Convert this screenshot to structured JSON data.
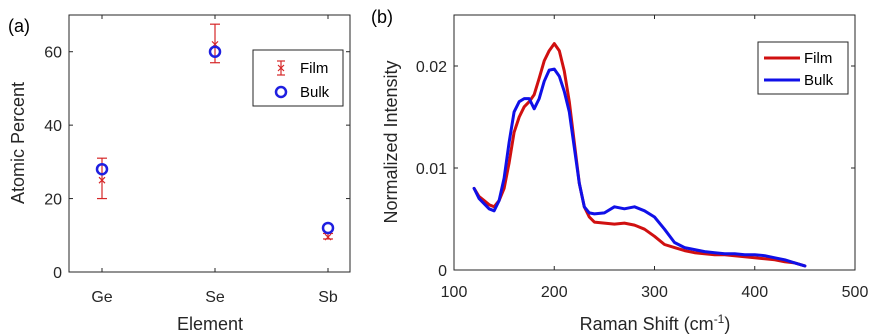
{
  "chart_data": [
    {
      "panel_label": "(a)",
      "type": "scatter",
      "xlabel": "Element",
      "ylabel": "Atomic Percent",
      "categories": [
        "Ge",
        "Se",
        "Sb"
      ],
      "ylim": [
        0,
        70
      ],
      "yticks": [
        0,
        20,
        40,
        60
      ],
      "grid": false,
      "legend_position": "top-right",
      "series": [
        {
          "name": "Film",
          "color": "#d62728",
          "marker": "x",
          "values": [
            25,
            62,
            9.5
          ],
          "error_low": [
            20,
            57,
            9
          ],
          "error_high": [
            31,
            67.5,
            10.5
          ]
        },
        {
          "name": "Bulk",
          "color": "#1f1fe0",
          "marker": "o",
          "values": [
            28,
            60,
            12
          ]
        }
      ]
    },
    {
      "panel_label": "(b)",
      "type": "line",
      "xlabel": "Raman Shift (cm",
      "xlabel_sup": "-1",
      "xlabel_close": ")",
      "ylabel": "Normalized Intensity",
      "xlim": [
        100,
        500
      ],
      "xticks": [
        100,
        200,
        300,
        400,
        500
      ],
      "ylim": [
        0,
        0.025
      ],
      "yticks": [
        0,
        0.01,
        0.02
      ],
      "ytick_labels": [
        "0",
        "0.01",
        "0.02"
      ],
      "grid": false,
      "legend_position": "top-right",
      "series": [
        {
          "name": "Film",
          "color": "#d01010",
          "x": [
            120,
            125,
            130,
            135,
            140,
            145,
            150,
            155,
            160,
            165,
            170,
            175,
            180,
            185,
            190,
            195,
            200,
            205,
            210,
            215,
            220,
            225,
            230,
            235,
            240,
            250,
            260,
            270,
            280,
            290,
            300,
            310,
            320,
            330,
            340,
            350,
            360,
            370,
            380,
            390,
            400,
            410,
            420,
            430,
            440,
            450
          ],
          "y": [
            0.008,
            0.0072,
            0.0068,
            0.0064,
            0.0062,
            0.0068,
            0.008,
            0.0105,
            0.0135,
            0.015,
            0.016,
            0.0165,
            0.0172,
            0.0188,
            0.0205,
            0.0215,
            0.0222,
            0.0215,
            0.0195,
            0.0165,
            0.0125,
            0.0085,
            0.0062,
            0.0052,
            0.0047,
            0.0046,
            0.0045,
            0.0046,
            0.0044,
            0.004,
            0.0033,
            0.0025,
            0.0022,
            0.0019,
            0.0017,
            0.0016,
            0.0015,
            0.0015,
            0.0014,
            0.0013,
            0.0012,
            0.0011,
            0.001,
            0.0008,
            0.0007,
            0.0004
          ]
        },
        {
          "name": "Bulk",
          "color": "#1010e8",
          "x": [
            120,
            125,
            130,
            135,
            140,
            145,
            150,
            155,
            160,
            165,
            170,
            175,
            180,
            185,
            190,
            195,
            200,
            205,
            210,
            215,
            220,
            225,
            230,
            235,
            240,
            250,
            260,
            270,
            280,
            290,
            300,
            310,
            320,
            330,
            340,
            350,
            360,
            370,
            380,
            390,
            400,
            410,
            420,
            430,
            440,
            450
          ],
          "y": [
            0.008,
            0.007,
            0.0065,
            0.006,
            0.0058,
            0.0068,
            0.009,
            0.0125,
            0.0155,
            0.0165,
            0.0168,
            0.0168,
            0.0158,
            0.0168,
            0.0185,
            0.0196,
            0.0197,
            0.019,
            0.0175,
            0.0155,
            0.012,
            0.0085,
            0.0062,
            0.0056,
            0.0055,
            0.0056,
            0.0062,
            0.006,
            0.0062,
            0.0058,
            0.0052,
            0.004,
            0.0027,
            0.0022,
            0.002,
            0.0018,
            0.0017,
            0.0016,
            0.0016,
            0.0015,
            0.0015,
            0.0014,
            0.0012,
            0.001,
            0.0007,
            0.0004
          ]
        }
      ]
    }
  ]
}
